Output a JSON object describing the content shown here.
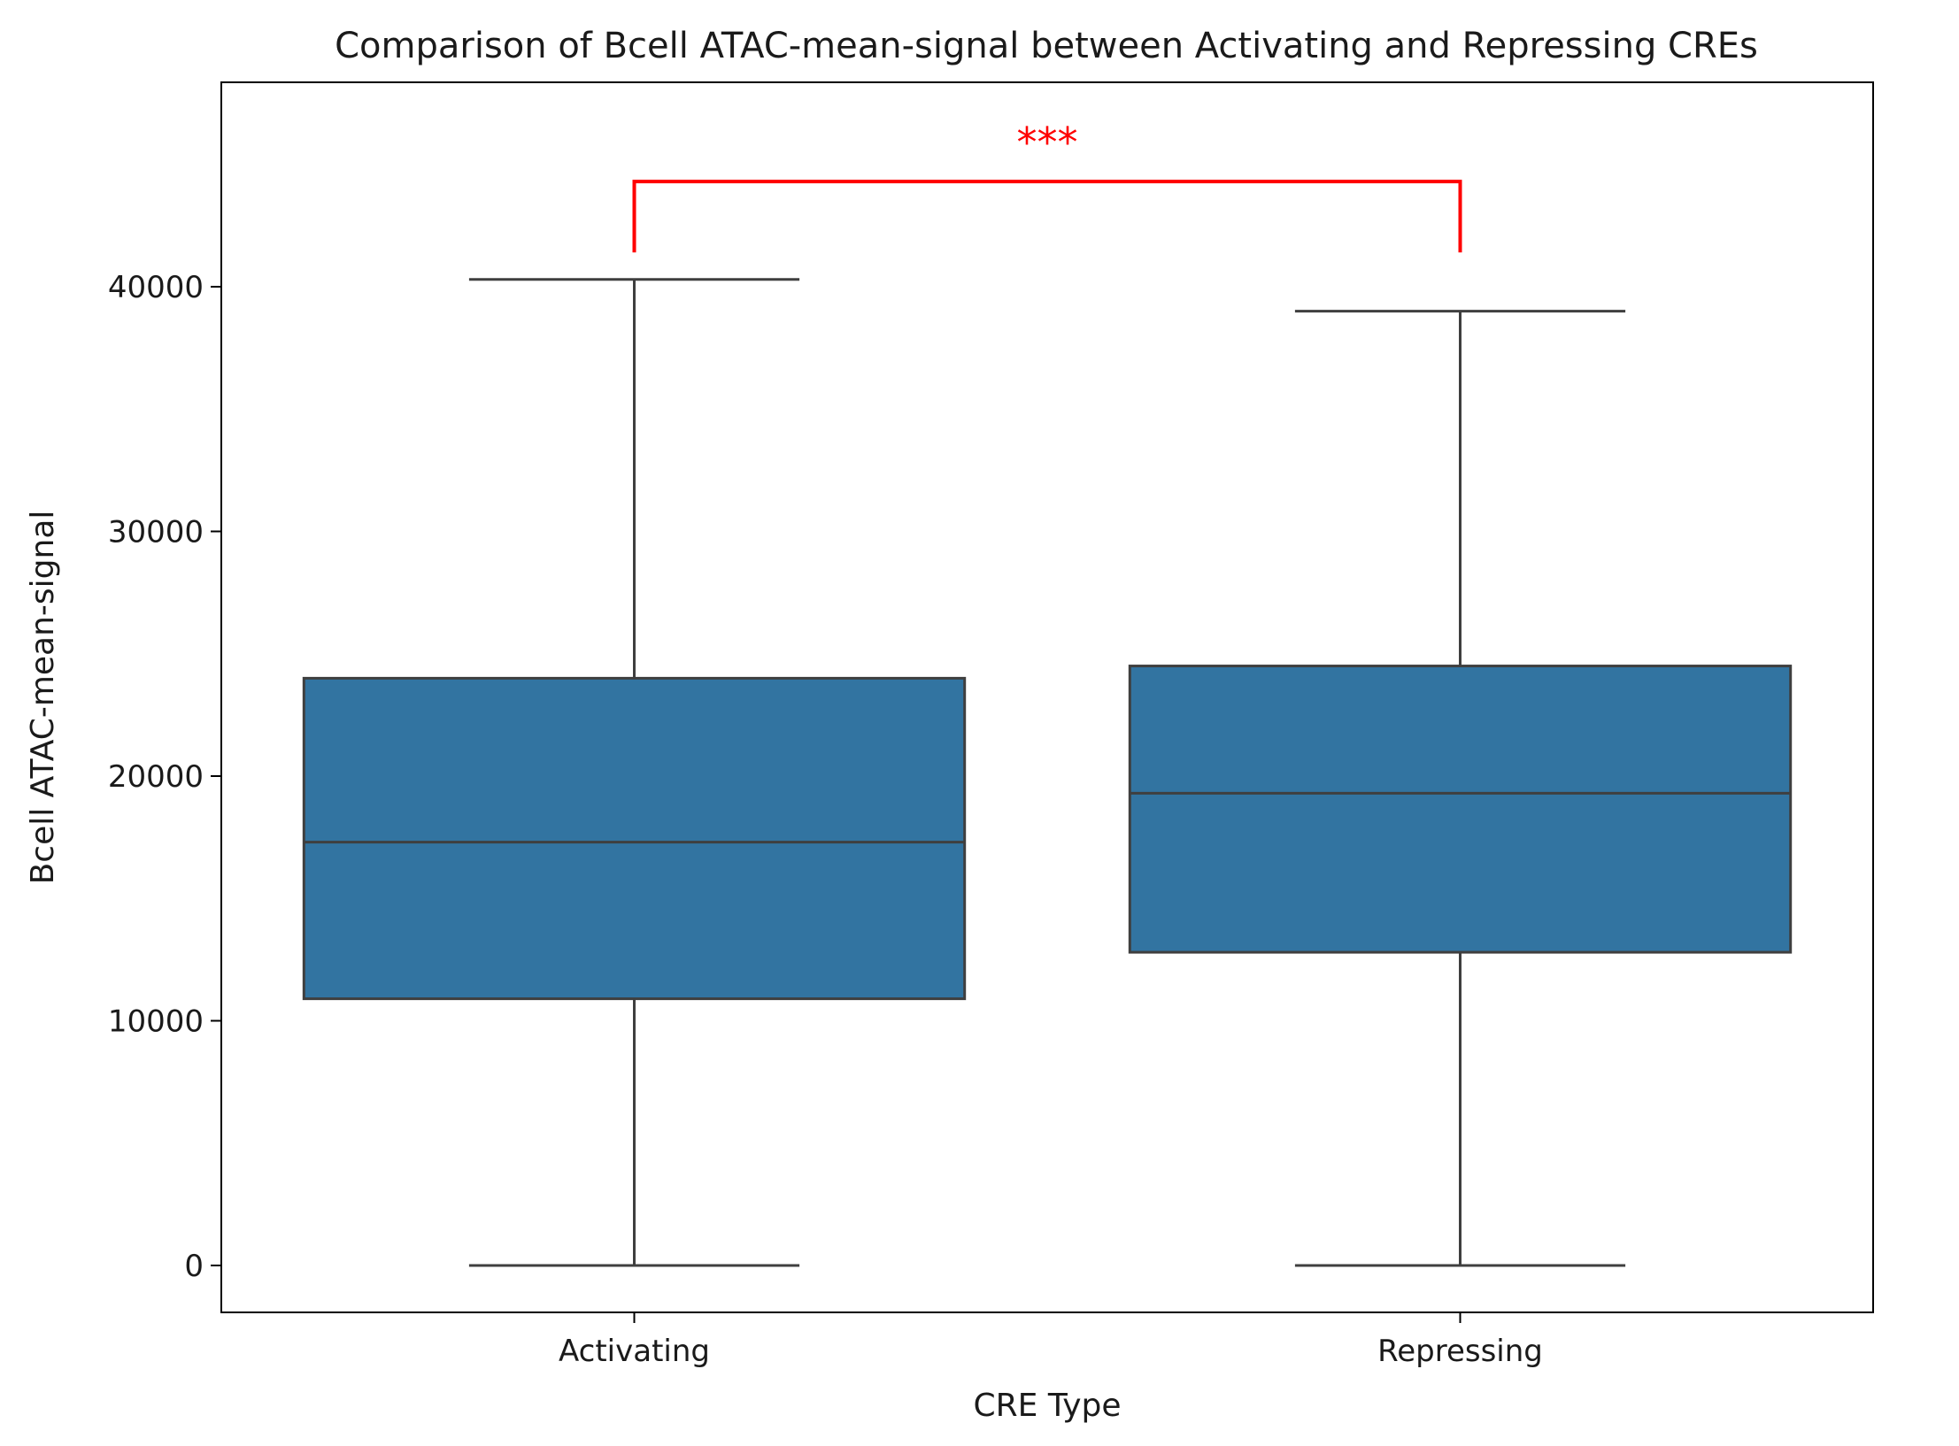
{
  "chart_data": {
    "type": "box",
    "title": "Comparison of Bcell ATAC-mean-signal between Activating and Repressing CREs",
    "xlabel": "CRE Type",
    "ylabel": "Bcell ATAC-mean-signal",
    "ylim": [
      -2000,
      48500
    ],
    "yticks": [
      0,
      10000,
      20000,
      30000,
      40000
    ],
    "ytick_labels": [
      "0",
      "10000",
      "20000",
      "30000",
      "40000"
    ],
    "categories": [
      "Activating",
      "Repressing"
    ],
    "boxes": [
      {
        "category": "Activating",
        "whisker_low": 0,
        "q1": 10900,
        "median": 17300,
        "q3": 24000,
        "whisker_high": 40300
      },
      {
        "category": "Repressing",
        "whisker_low": 0,
        "q1": 12800,
        "median": 19300,
        "q3": 24500,
        "whisker_high": 39000
      }
    ],
    "significance": {
      "label": "***",
      "from": "Activating",
      "to": "Repressing",
      "bar_y": 44300,
      "tip_y": 41400
    },
    "box_color": "#3274a1",
    "line_color": "#3f3f3f",
    "significance_color": "#ff0000",
    "grid": false,
    "legend": "none"
  }
}
